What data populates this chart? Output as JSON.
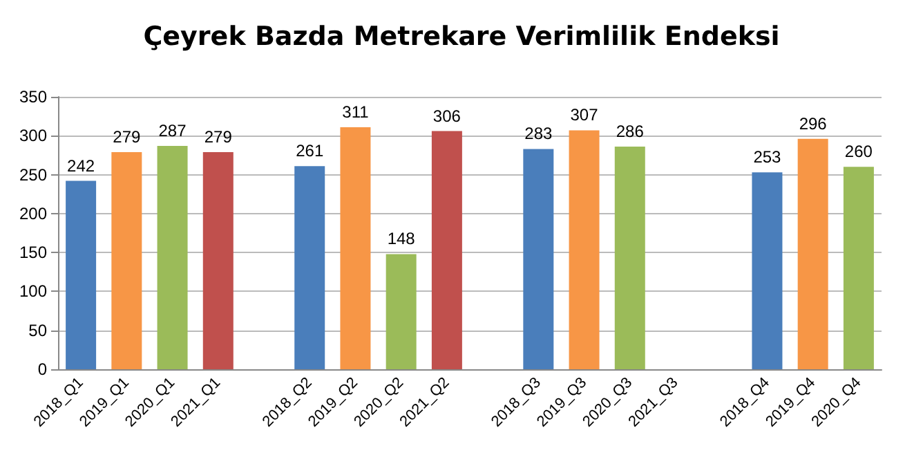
{
  "chart_data": {
    "type": "bar",
    "title": "Çeyrek Bazda Metrekare Verimlilik Endeksi",
    "categories": [
      "2018_Q1",
      "2019_Q1",
      "2020_Q1",
      "2021_Q1",
      null,
      "2018_Q2",
      "2019_Q2",
      "2020_Q2",
      "2021_Q2",
      null,
      "2018_Q3",
      "2019_Q3",
      "2020_Q3",
      "2021_Q3",
      null,
      "2018_Q4",
      "2019_Q4",
      "2020_Q4"
    ],
    "values": [
      242,
      279,
      287,
      279,
      null,
      261,
      311,
      148,
      306,
      null,
      283,
      307,
      286,
      null,
      null,
      253,
      296,
      260
    ],
    "colors": [
      "#4a7ebb",
      "#f79646",
      "#9bbb59",
      "#c0504d",
      null,
      "#4a7ebb",
      "#f79646",
      "#9bbb59",
      "#c0504d",
      null,
      "#4a7ebb",
      "#f79646",
      "#9bbb59",
      null,
      null,
      "#4a7ebb",
      "#f79646",
      "#9bbb59"
    ],
    "ylim": [
      0,
      350
    ],
    "yticks": [
      0,
      50,
      100,
      150,
      200,
      250,
      300,
      350
    ],
    "grid": "y",
    "data_labels": true
  }
}
